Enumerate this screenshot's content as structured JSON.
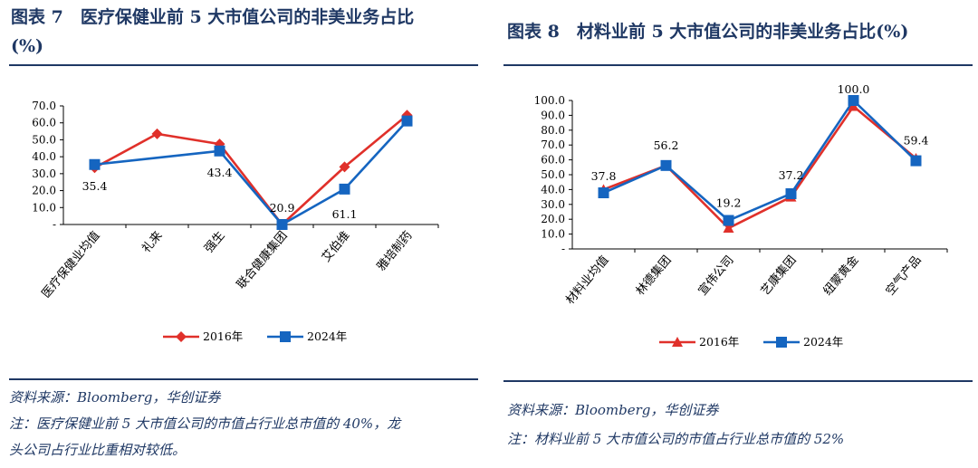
{
  "left": {
    "title_line1": "图表 7　医疗保健业前 5 大市值公司的非美业务占比",
    "title_line2": "(%)",
    "source": "资料来源：Bloomberg，华创证券",
    "note_line1": "注：医疗保健业前 5 大市值公司的市值占行业总市值的 40%，龙",
    "note_line2": "头公司占行业比重相对较低。"
  },
  "right": {
    "title": "图表 8　材料业前 5 大市值公司的非美业务占比(%)",
    "source": "资料来源：Bloomberg，华创证券",
    "note": "注：材料业前 5 大市值公司的市值占行业总市值的 52%"
  },
  "chart_data": [
    {
      "type": "line",
      "categories": [
        "医疗保健业均值",
        "礼来",
        "强生",
        "联合健康集团",
        "艾伯维",
        "雅培制药"
      ],
      "yticks": [
        "-",
        "10.0",
        "20.0",
        "30.0",
        "40.0",
        "50.0",
        "60.0",
        "70.0"
      ],
      "ylim": [
        0,
        70
      ],
      "series": [
        {
          "name": "2016年",
          "marker": "diamond",
          "color": "#e0302a",
          "values": [
            33.5,
            53.5,
            47.5,
            0,
            34,
            64.5
          ]
        },
        {
          "name": "2024年",
          "marker": "square",
          "color": "#1565c0",
          "values": [
            35.4,
            null,
            43.4,
            0,
            20.9,
            61.1
          ]
        }
      ],
      "data_labels": [
        "35.4",
        "43.4",
        "20.9",
        "61.1"
      ],
      "legend": "bottom"
    },
    {
      "type": "line",
      "categories": [
        "材料业均值",
        "林德集团",
        "宣伟公司",
        "艺康集团",
        "纽蒙黄金",
        "空气产品"
      ],
      "yticks": [
        "-",
        "10.0",
        "20.0",
        "30.0",
        "40.0",
        "50.0",
        "60.0",
        "70.0",
        "80.0",
        "90.0",
        "100.0"
      ],
      "ylim": [
        0,
        100
      ],
      "series": [
        {
          "name": "2016年",
          "marker": "triangle",
          "color": "#e0302a",
          "values": [
            40,
            56.2,
            14,
            35,
            96,
            61
          ]
        },
        {
          "name": "2024年",
          "marker": "square",
          "color": "#1565c0",
          "values": [
            37.8,
            56.2,
            19.2,
            37.2,
            100.0,
            59.4
          ]
        }
      ],
      "data_labels": [
        "37.8",
        "56.2",
        "19.2",
        "37.2",
        "100.0",
        "59.4"
      ],
      "legend": "bottom"
    }
  ]
}
